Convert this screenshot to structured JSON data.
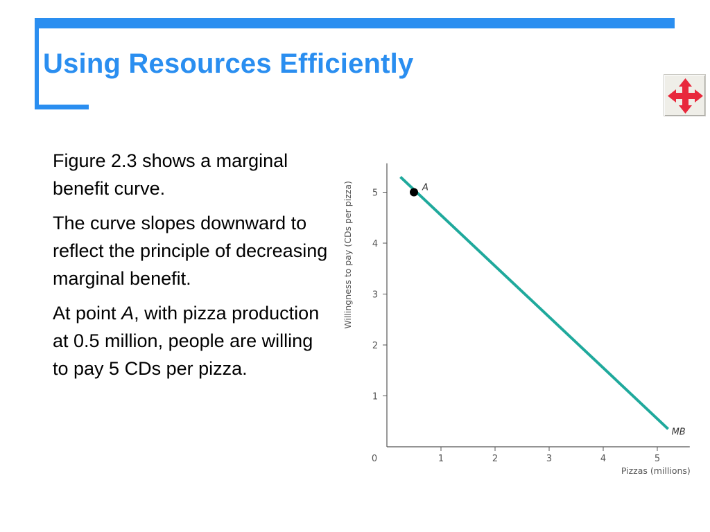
{
  "slide": {
    "title": "Using Resources Efficiently",
    "accent_color": "#2a8ef0",
    "nav_icon": "move-arrows-icon",
    "nav_icon_color": "#e8283c"
  },
  "text": {
    "para1": "Figure 2.3 shows a marginal benefit curve.",
    "para2": "The curve slopes downward to reflect the principle of decreasing marginal benefit.",
    "para3_before": "At point ",
    "para3_point": "A",
    "para3_after": ", with pizza production at 0.5 million, people are willing to pay 5 CDs per pizza."
  },
  "chart_data": {
    "type": "line",
    "xlabel": "Pizzas (millions)",
    "ylabel": "Willingness to pay (CDs per pizza)",
    "origin_label": "0",
    "x_ticks": [
      1,
      2,
      3,
      4,
      5
    ],
    "y_ticks": [
      1,
      2,
      3,
      4,
      5
    ],
    "xlim": [
      0,
      5.6
    ],
    "ylim": [
      0,
      5.5
    ],
    "series": [
      {
        "name": "MB",
        "color": "#1fa99c",
        "x": [
          0.25,
          5.2
        ],
        "y": [
          5.3,
          0.35
        ]
      }
    ],
    "points": [
      {
        "label": "A",
        "x": 0.5,
        "y": 5
      }
    ]
  }
}
